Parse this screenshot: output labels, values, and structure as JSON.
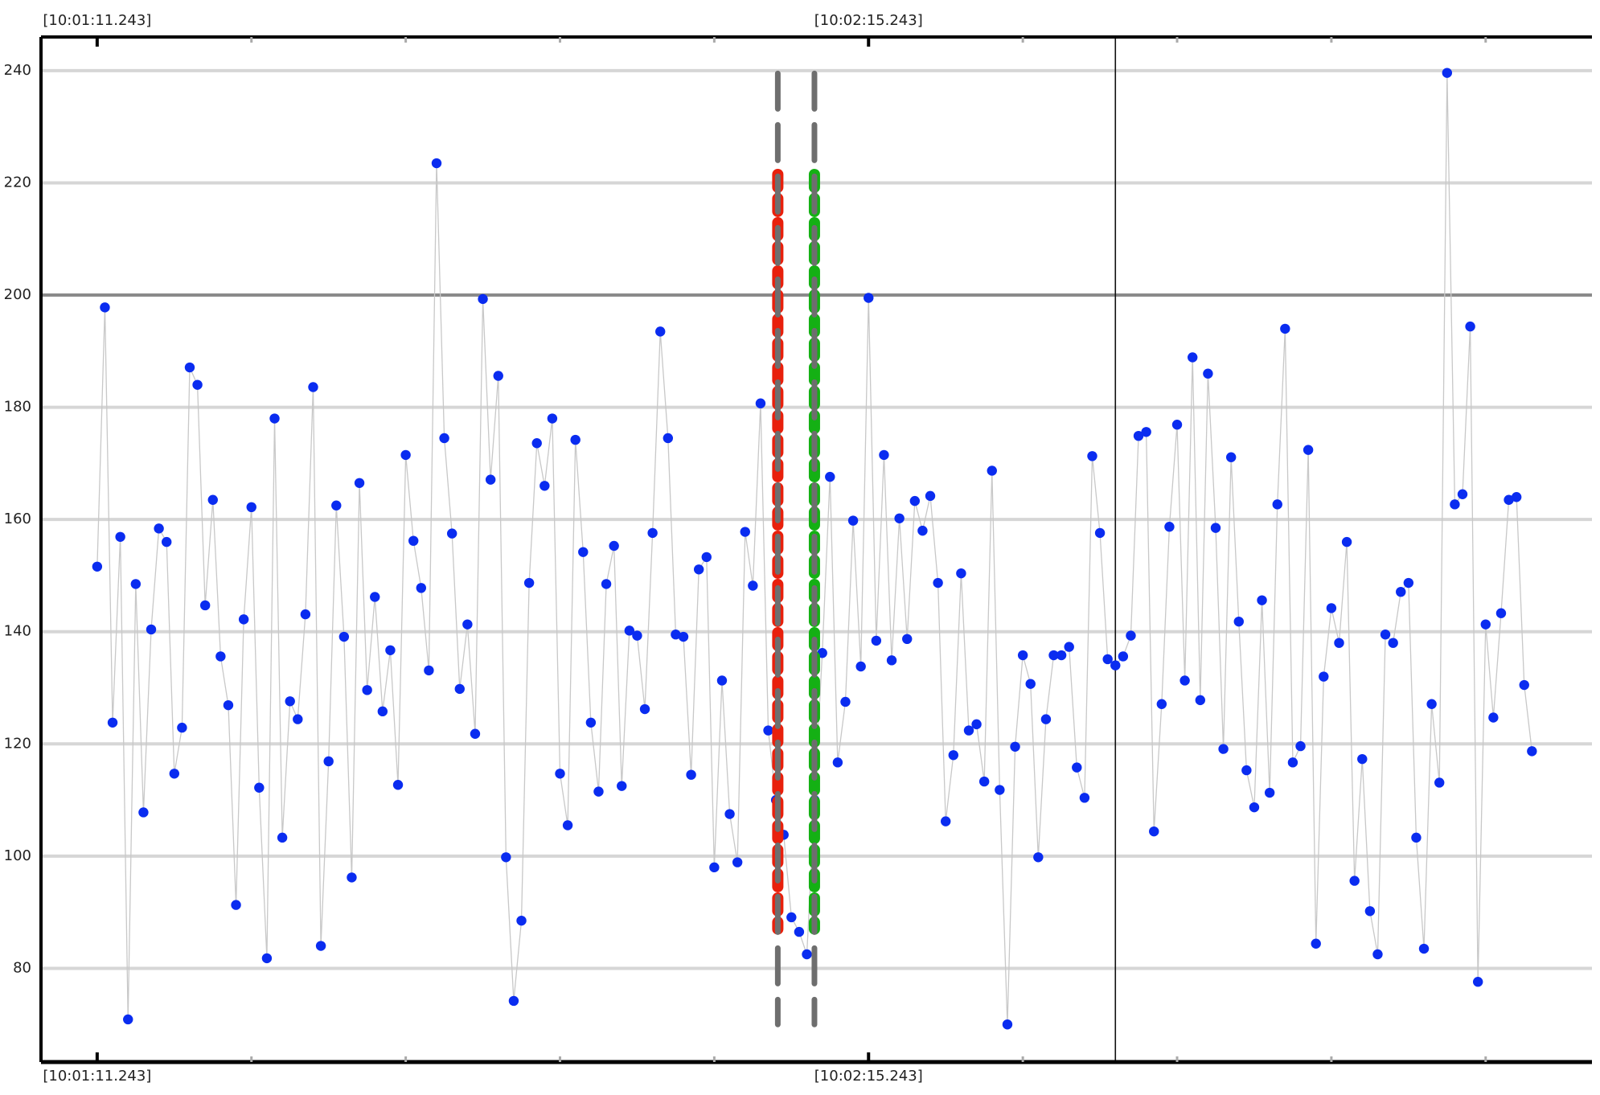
{
  "chart_data": {
    "type": "line",
    "color": "#0a2cf0",
    "line_color": "#c8c8c8",
    "x": [
      0,
      0.64,
      1.28,
      1.92,
      2.56,
      3.2,
      3.84,
      4.48,
      5.12,
      5.76,
      6.4,
      7.04,
      7.68,
      8.32,
      8.96,
      9.6,
      10.24,
      10.88,
      11.52,
      12.16,
      12.8,
      13.44,
      14.08,
      14.72,
      15.36,
      16,
      16.64,
      17.28,
      17.92,
      18.56,
      19.2,
      19.84,
      20.48,
      21.12,
      21.76,
      22.4,
      23.04,
      23.68,
      24.32,
      24.96,
      25.6,
      26.24,
      26.88,
      27.52,
      28.16,
      28.8,
      29.44,
      30.08,
      30.72,
      31.36,
      32,
      32.64,
      33.28,
      33.92,
      34.56,
      35.2,
      35.84,
      36.48,
      37.12,
      37.76,
      38.4,
      39.04,
      39.68,
      40.32,
      40.96,
      41.6,
      42.24,
      42.88,
      43.52,
      44.16,
      44.8,
      45.44,
      46.08,
      46.72,
      47.36,
      48,
      48.64,
      49.28,
      49.92,
      50.56,
      51.2,
      51.84,
      52.48,
      53.12,
      53.76,
      54.4,
      55.04,
      55.68,
      56.32,
      56.96,
      57.6,
      58.24,
      58.88,
      59.52,
      60.16,
      60.8,
      61.44,
      62.08,
      62.72,
      63.36,
      64,
      64.64,
      65.28,
      65.92,
      66.56,
      67.2,
      67.84,
      68.48,
      69.12,
      69.76,
      70.4,
      71.04,
      71.68,
      72.32,
      72.96,
      73.6,
      74.24,
      74.88,
      75.52,
      76.16,
      76.8,
      77.44,
      78.08,
      78.72,
      79.36,
      80,
      80.64,
      81.28,
      81.92,
      82.56,
      83.2,
      83.84,
      84.48,
      85.12,
      85.76,
      86.4,
      87.04,
      87.68,
      88.32,
      88.96,
      89.6,
      90.24,
      90.88,
      91.52,
      92.16,
      92.8,
      93.44,
      94.08,
      94.72,
      95.36,
      96,
      96.64,
      97.28,
      97.92,
      98.56,
      99.2,
      99.84,
      100.48,
      101.12,
      101.76,
      102.4,
      103.04,
      103.68,
      104.32,
      104.96,
      105.6,
      106.24,
      106.88,
      107.52,
      108.16,
      108.8,
      109.44,
      110.08,
      110.72,
      111.36,
      112,
      112.64,
      113.28,
      113.92,
      114.56,
      115.2,
      115.84,
      116.48,
      117.12,
      117.76,
      118.4,
      119.04
    ],
    "values": [
      151.6,
      197.8,
      123.8,
      156.9,
      70.9,
      148.5,
      107.8,
      140.4,
      158.4,
      156,
      114.7,
      122.9,
      187.1,
      184,
      144.7,
      163.5,
      135.6,
      126.9,
      91.3,
      142.2,
      162.2,
      112.2,
      81.8,
      178,
      103.3,
      127.6,
      124.4,
      143.1,
      183.6,
      84,
      116.9,
      162.5,
      139.1,
      96.2,
      166.5,
      129.6,
      146.2,
      125.8,
      136.7,
      112.7,
      171.5,
      156.2,
      147.8,
      133.1,
      223.5,
      174.5,
      157.5,
      129.8,
      141.3,
      121.8,
      199.3,
      167.1,
      185.6,
      99.8,
      74.2,
      88.5,
      148.7,
      173.6,
      166,
      178,
      114.7,
      105.5,
      174.2,
      154.2,
      123.8,
      111.5,
      148.5,
      155.3,
      112.5,
      140.2,
      139.3,
      126.2,
      157.6,
      193.5,
      174.5,
      139.5,
      139.1,
      114.5,
      151.1,
      153.3,
      98,
      131.3,
      107.5,
      98.9,
      157.8,
      148.2,
      180.7,
      122.4,
      110,
      103.8,
      89.1,
      86.5,
      82.5,
      110,
      136.2,
      167.6,
      116.7,
      127.5,
      159.8,
      133.8,
      199.5,
      138.4,
      171.5,
      134.9,
      160.2,
      138.7,
      163.3,
      158,
      164.2,
      148.7,
      106.2,
      118,
      150.4,
      122.4,
      123.5,
      113.3,
      168.7,
      111.8,
      70,
      119.5,
      135.8,
      130.7,
      99.8,
      124.4,
      135.8,
      135.8,
      137.3,
      115.8,
      110.4,
      171.3,
      157.6,
      135.1,
      134,
      135.6,
      139.3,
      174.9,
      175.6,
      104.4,
      127.1,
      158.7,
      176.9,
      131.3,
      188.9,
      127.8,
      186,
      158.5,
      119.1,
      171.1,
      141.8,
      115.3,
      108.7,
      145.6,
      111.3,
      162.7,
      194,
      116.7,
      119.6,
      172.4,
      84.4,
      132,
      144.2,
      138,
      156,
      95.6,
      117.3,
      90.2,
      82.5,
      139.5,
      138,
      147.1,
      148.7,
      103.3,
      83.5,
      127.1,
      113.1,
      239.6,
      162.7,
      164.5,
      194.4,
      77.6,
      141.3,
      124.7,
      143.3,
      163.5,
      164,
      130.5,
      118.7
    ],
    "xlim": [
      -4.66,
      124.02
    ],
    "xticks": [
      {
        "value": 0,
        "label": "[10:01:11.243]"
      },
      {
        "value": 64,
        "label": "[10:02:15.243]"
      }
    ],
    "xminor_ticks": [
      12.8,
      25.6,
      38.4,
      51.2,
      76.8,
      89.6,
      102.4,
      115.2
    ],
    "ylim": [
      63.3,
      246
    ],
    "yticks": [
      80,
      100,
      120,
      140,
      160,
      180,
      200,
      220,
      240
    ],
    "grid": true,
    "hlines": [
      {
        "y": 200,
        "color": "#8a8a8a"
      }
    ],
    "vlines": [
      {
        "x": 84.48,
        "color": "#111111"
      }
    ],
    "markers": [
      {
        "x": 56.47,
        "range": [
          87,
          221.5
        ],
        "color": "#e8200c"
      },
      {
        "x": 59.51,
        "range": [
          87,
          221.5
        ],
        "color": "#14b014"
      },
      {
        "x": 56.47,
        "range": [
          70,
          239.5
        ],
        "color": "#6e6e6e"
      },
      {
        "x": 59.51,
        "range": [
          70,
          239.5
        ],
        "color": "#6e6e6e"
      }
    ]
  }
}
